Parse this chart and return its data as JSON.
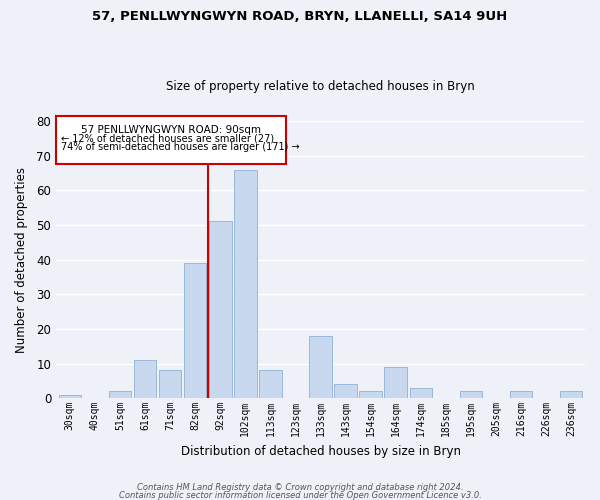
{
  "title": "57, PENLLWYNGWYN ROAD, BRYN, LLANELLI, SA14 9UH",
  "subtitle": "Size of property relative to detached houses in Bryn",
  "xlabel": "Distribution of detached houses by size in Bryn",
  "ylabel": "Number of detached properties",
  "categories": [
    "30sqm",
    "40sqm",
    "51sqm",
    "61sqm",
    "71sqm",
    "82sqm",
    "92sqm",
    "102sqm",
    "113sqm",
    "123sqm",
    "133sqm",
    "143sqm",
    "154sqm",
    "164sqm",
    "174sqm",
    "185sqm",
    "195sqm",
    "205sqm",
    "216sqm",
    "226sqm",
    "236sqm"
  ],
  "values": [
    1,
    0,
    2,
    11,
    8,
    39,
    51,
    66,
    8,
    0,
    18,
    4,
    2,
    9,
    3,
    0,
    2,
    0,
    2,
    0,
    2
  ],
  "bar_color": "#c8d8ee",
  "bar_edge_color": "#9ab8d8",
  "highlight_color": "#cc0000",
  "annotation_title": "57 PENLLWYNGWYN ROAD: 90sqm",
  "annotation_line1": "← 12% of detached houses are smaller (27)",
  "annotation_line2": "74% of semi-detached houses are larger (171) →",
  "box_edge_color": "#cc0000",
  "ylim": [
    0,
    80
  ],
  "yticks": [
    0,
    10,
    20,
    30,
    40,
    50,
    60,
    70,
    80
  ],
  "footer1": "Contains HM Land Registry data © Crown copyright and database right 2024.",
  "footer2": "Contains public sector information licensed under the Open Government Licence v3.0.",
  "bg_color": "#eef2f8",
  "plot_bg_color": "#eef2f8",
  "grid_color": "#ffffff"
}
